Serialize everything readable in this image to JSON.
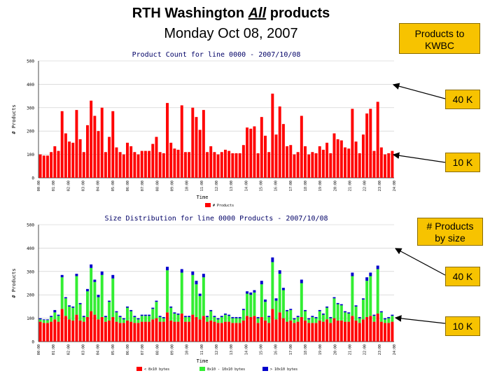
{
  "header": {
    "title_prefix": "RTH Washington ",
    "title_emph": "All",
    "title_suffix": " products",
    "date": "Monday Oct 08, 2007"
  },
  "callouts": {
    "kwbc": "Products to KWBC",
    "count_40k": "40 K",
    "count_10k": "10 K",
    "by_size": "# Products by size",
    "size_40k": "40 K",
    "size_10k": "10 K"
  },
  "colors": {
    "bar_red": "#ff0000",
    "bar_green": "#33ee33",
    "bar_blue": "#0000cc",
    "callout": "#f7c300"
  },
  "chart_data": [
    {
      "type": "bar",
      "title": "Product Count for line 0000 - 2007/10/08",
      "xlabel": "Time",
      "ylabel": "# Products",
      "ylim": [
        0,
        500
      ],
      "yticks": [
        "0",
        "100",
        "200",
        "300",
        "400",
        "500"
      ],
      "xticks": [
        "00:00",
        "01:00",
        "02:00",
        "03:00",
        "04:00",
        "05:00",
        "06:00",
        "07:00",
        "08:00",
        "09:00",
        "10:00",
        "11:00",
        "12:00",
        "13:00",
        "14:00",
        "15:00",
        "16:00",
        "17:00",
        "18:00",
        "19:00",
        "20:00",
        "21:00",
        "22:00",
        "23:00",
        "24:00"
      ],
      "series": [
        {
          "name": "# Products",
          "values": [
            100,
            95,
            95,
            110,
            135,
            115,
            285,
            190,
            155,
            150,
            290,
            165,
            110,
            225,
            330,
            265,
            200,
            300,
            110,
            175,
            285,
            130,
            110,
            100,
            150,
            135,
            110,
            100,
            115,
            115,
            115,
            145,
            175,
            110,
            105,
            320,
            150,
            125,
            120,
            310,
            110,
            110,
            300,
            260,
            205,
            290,
            110,
            135,
            110,
            100,
            110,
            120,
            115,
            105,
            105,
            105,
            140,
            215,
            210,
            220,
            105,
            260,
            180,
            110,
            360,
            185,
            305,
            230,
            135,
            140,
            100,
            110,
            265,
            135,
            100,
            110,
            105,
            135,
            120,
            150,
            105,
            190,
            165,
            160,
            130,
            125,
            295,
            155,
            105,
            185,
            275,
            295,
            115,
            325,
            130,
            100,
            105,
            115
          ]
        }
      ]
    },
    {
      "type": "bar",
      "stacked": true,
      "title": "Size Distribution for line 0000 Products - 2007/10/08",
      "xlabel": "Time",
      "ylabel": "# Products",
      "ylim": [
        0,
        500
      ],
      "yticks": [
        "0",
        "100",
        "200",
        "300",
        "400",
        "500"
      ],
      "xticks": [
        "00:00",
        "01:00",
        "02:00",
        "03:00",
        "04:00",
        "05:00",
        "06:00",
        "07:00",
        "08:00",
        "09:00",
        "10:00",
        "11:00",
        "12:00",
        "13:00",
        "14:00",
        "15:00",
        "16:00",
        "17:00",
        "18:00",
        "19:00",
        "20:00",
        "21:00",
        "22:00",
        "23:00",
        "24:00"
      ],
      "series": [
        {
          "name": "< 8x10 bytes",
          "values": [
            85,
            80,
            80,
            85,
            95,
            85,
            140,
            110,
            95,
            90,
            115,
            90,
            85,
            105,
            130,
            115,
            95,
            105,
            85,
            90,
            105,
            85,
            80,
            80,
            90,
            85,
            80,
            80,
            85,
            85,
            85,
            95,
            100,
            85,
            85,
            125,
            90,
            85,
            85,
            120,
            85,
            85,
            115,
            105,
            95,
            110,
            85,
            90,
            85,
            80,
            80,
            85,
            85,
            80,
            80,
            80,
            90,
            110,
            105,
            110,
            80,
            105,
            90,
            80,
            140,
            95,
            125,
            100,
            85,
            90,
            80,
            85,
            105,
            90,
            80,
            80,
            80,
            90,
            85,
            95,
            80,
            100,
            90,
            90,
            85,
            85,
            110,
            90,
            80,
            95,
            105,
            110,
            85,
            120,
            85,
            80,
            80,
            85
          ]
        },
        {
          "name": "8x10 - 10x10 bytes",
          "values": [
            10,
            12,
            12,
            20,
            30,
            25,
            135,
            75,
            55,
            55,
            165,
            70,
            20,
            110,
            185,
            140,
            95,
            180,
            20,
            80,
            165,
            40,
            25,
            15,
            55,
            45,
            25,
            15,
            25,
            25,
            25,
            45,
            70,
            20,
            15,
            180,
            55,
            35,
            30,
            175,
            20,
            20,
            170,
            140,
            100,
            165,
            20,
            40,
            20,
            15,
            25,
            30,
            25,
            20,
            20,
            20,
            45,
            95,
            95,
            100,
            20,
            140,
            80,
            25,
            200,
            80,
            165,
            120,
            45,
            45,
            15,
            20,
            145,
            40,
            15,
            25,
            20,
            40,
            30,
            50,
            20,
            85,
            70,
            65,
            40,
            35,
            170,
            60,
            20,
            85,
            155,
            170,
            25,
            190,
            40,
            15,
            20,
            25
          ]
        },
        {
          "name": "> 10x10 bytes",
          "values": [
            5,
            3,
            3,
            5,
            10,
            5,
            10,
            5,
            5,
            5,
            10,
            5,
            5,
            10,
            15,
            10,
            10,
            15,
            5,
            5,
            15,
            5,
            5,
            5,
            5,
            5,
            5,
            5,
            5,
            5,
            5,
            5,
            5,
            5,
            5,
            15,
            5,
            5,
            5,
            15,
            5,
            5,
            15,
            15,
            10,
            15,
            5,
            5,
            5,
            5,
            5,
            5,
            5,
            5,
            5,
            5,
            5,
            10,
            10,
            10,
            5,
            15,
            10,
            5,
            20,
            10,
            15,
            10,
            5,
            5,
            5,
            5,
            15,
            5,
            5,
            5,
            5,
            5,
            5,
            5,
            5,
            5,
            5,
            5,
            5,
            5,
            15,
            5,
            5,
            5,
            15,
            15,
            5,
            15,
            5,
            5,
            5,
            5
          ]
        }
      ]
    }
  ]
}
